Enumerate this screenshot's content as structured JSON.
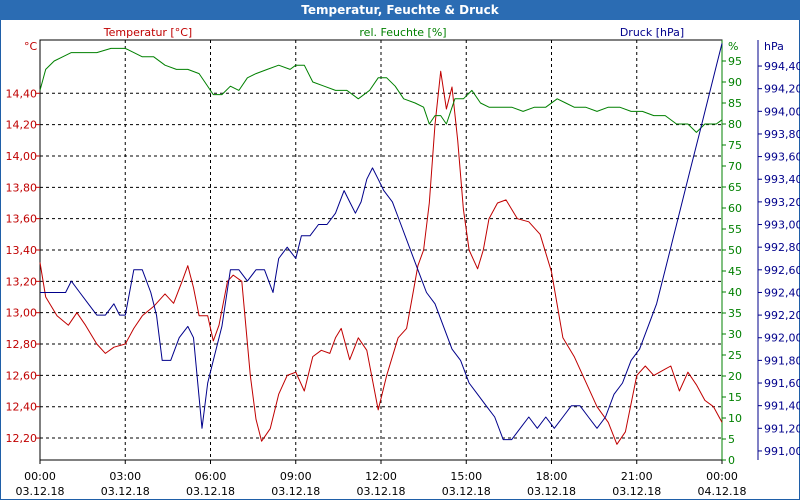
{
  "window": {
    "title": "Temperatur, Feuchte & Druck"
  },
  "colors": {
    "temperature": "#c00000",
    "humidity": "#008000",
    "pressure": "#00008b",
    "grid": "#000000",
    "title_bar": "#2b6cb3"
  },
  "chart_data": {
    "type": "line",
    "title": "Temperatur, Feuchte & Druck",
    "grid": true,
    "x_labels": [
      {
        "time": "00:00",
        "date": "03.12.18"
      },
      {
        "time": "03:00",
        "date": "03.12.18"
      },
      {
        "time": "06:00",
        "date": "03.12.18"
      },
      {
        "time": "09:00",
        "date": "03.12.18"
      },
      {
        "time": "12:00",
        "date": "03.12.18"
      },
      {
        "time": "15:00",
        "date": "03.12.18"
      },
      {
        "time": "18:00",
        "date": "03.12.18"
      },
      {
        "time": "21:00",
        "date": "03.12.18"
      },
      {
        "time": "00:00",
        "date": "04.12.18"
      }
    ],
    "x_range_hours": [
      0,
      24
    ],
    "axes": {
      "temperature": {
        "unit": "°C",
        "label": "Temperatur [°C]",
        "range": [
          12.06,
          14.74
        ],
        "ticks": [
          "12,20",
          "12,40",
          "12,60",
          "12,80",
          "13,00",
          "13,20",
          "13,40",
          "13,60",
          "13,80",
          "14,00",
          "14,20",
          "14,40"
        ],
        "tick_values": [
          12.2,
          12.4,
          12.6,
          12.8,
          13.0,
          13.2,
          13.4,
          13.6,
          13.8,
          14.0,
          14.2,
          14.4
        ]
      },
      "humidity": {
        "unit": "%",
        "label": "rel. Feuchte [%]",
        "range": [
          0,
          100
        ],
        "ticks": [
          "0",
          "5",
          "10",
          "15",
          "20",
          "25",
          "30",
          "35",
          "40",
          "45",
          "50",
          "55",
          "60",
          "65",
          "70",
          "75",
          "80",
          "85",
          "90",
          "95"
        ],
        "tick_values": [
          0,
          5,
          10,
          15,
          20,
          25,
          30,
          35,
          40,
          45,
          50,
          55,
          60,
          65,
          70,
          75,
          80,
          85,
          90,
          95
        ]
      },
      "pressure": {
        "unit": "hPa",
        "label": "Druck [hPa]",
        "range": [
          990.92,
          994.63
        ],
        "ticks": [
          "991,00",
          "991,20",
          "991,40",
          "991,60",
          "991,80",
          "992,00",
          "992,20",
          "992,40",
          "992,60",
          "992,80",
          "993,00",
          "993,20",
          "993,40",
          "993,60",
          "993,80",
          "994,00",
          "994,20",
          "994,40"
        ],
        "tick_values": [
          991.0,
          991.2,
          991.4,
          991.6,
          991.8,
          992.0,
          992.2,
          992.4,
          992.6,
          992.8,
          993.0,
          993.2,
          993.4,
          993.6,
          993.8,
          994.0,
          994.2,
          994.4
        ]
      }
    },
    "series": [
      {
        "name": "Temperatur",
        "axis": "temperature",
        "points": [
          [
            0,
            13.32
          ],
          [
            0.2,
            13.1
          ],
          [
            0.6,
            12.98
          ],
          [
            1,
            12.92
          ],
          [
            1.3,
            13.0
          ],
          [
            1.6,
            12.92
          ],
          [
            2,
            12.8
          ],
          [
            2.3,
            12.74
          ],
          [
            2.6,
            12.78
          ],
          [
            3,
            12.8
          ],
          [
            3.3,
            12.9
          ],
          [
            3.6,
            12.98
          ],
          [
            4,
            13.04
          ],
          [
            4.4,
            13.12
          ],
          [
            4.7,
            13.06
          ],
          [
            5,
            13.2
          ],
          [
            5.2,
            13.3
          ],
          [
            5.4,
            13.16
          ],
          [
            5.6,
            12.98
          ],
          [
            5.9,
            12.98
          ],
          [
            6.1,
            12.82
          ],
          [
            6.3,
            12.92
          ],
          [
            6.6,
            13.2
          ],
          [
            6.8,
            13.24
          ],
          [
            7.1,
            13.2
          ],
          [
            7.4,
            12.6
          ],
          [
            7.6,
            12.32
          ],
          [
            7.8,
            12.18
          ],
          [
            8.1,
            12.26
          ],
          [
            8.4,
            12.48
          ],
          [
            8.7,
            12.6
          ],
          [
            9,
            12.62
          ],
          [
            9.3,
            12.5
          ],
          [
            9.6,
            12.72
          ],
          [
            9.9,
            12.76
          ],
          [
            10.2,
            12.74
          ],
          [
            10.4,
            12.84
          ],
          [
            10.6,
            12.9
          ],
          [
            10.9,
            12.7
          ],
          [
            11.2,
            12.84
          ],
          [
            11.5,
            12.76
          ],
          [
            11.9,
            12.38
          ],
          [
            12.2,
            12.6
          ],
          [
            12.6,
            12.84
          ],
          [
            12.9,
            12.9
          ],
          [
            13.1,
            13.1
          ],
          [
            13.3,
            13.3
          ],
          [
            13.5,
            13.4
          ],
          [
            13.7,
            13.7
          ],
          [
            13.9,
            14.2
          ],
          [
            14.1,
            14.54
          ],
          [
            14.3,
            14.3
          ],
          [
            14.5,
            14.44
          ],
          [
            14.7,
            14.1
          ],
          [
            14.9,
            13.66
          ],
          [
            15.1,
            13.4
          ],
          [
            15.4,
            13.28
          ],
          [
            15.6,
            13.4
          ],
          [
            15.8,
            13.6
          ],
          [
            16.1,
            13.7
          ],
          [
            16.4,
            13.72
          ],
          [
            16.8,
            13.6
          ],
          [
            17.2,
            13.58
          ],
          [
            17.6,
            13.5
          ],
          [
            18,
            13.26
          ],
          [
            18.4,
            12.84
          ],
          [
            18.8,
            12.72
          ],
          [
            19.2,
            12.56
          ],
          [
            19.6,
            12.4
          ],
          [
            20,
            12.3
          ],
          [
            20.3,
            12.16
          ],
          [
            20.6,
            12.24
          ],
          [
            21,
            12.6
          ],
          [
            21.3,
            12.66
          ],
          [
            21.6,
            12.6
          ],
          [
            22,
            12.64
          ],
          [
            22.2,
            12.66
          ],
          [
            22.5,
            12.5
          ],
          [
            22.8,
            12.62
          ],
          [
            23.1,
            12.54
          ],
          [
            23.4,
            12.44
          ],
          [
            23.7,
            12.4
          ],
          [
            24,
            12.3
          ]
        ]
      },
      {
        "name": "rel. Feuchte",
        "axis": "humidity",
        "points": [
          [
            0,
            88
          ],
          [
            0.2,
            93
          ],
          [
            0.5,
            95
          ],
          [
            0.8,
            96
          ],
          [
            1.1,
            97
          ],
          [
            1.5,
            97
          ],
          [
            2,
            97
          ],
          [
            2.5,
            98
          ],
          [
            3,
            98
          ],
          [
            3.3,
            97
          ],
          [
            3.6,
            96
          ],
          [
            4,
            96
          ],
          [
            4.4,
            94
          ],
          [
            4.8,
            93
          ],
          [
            5.2,
            93
          ],
          [
            5.6,
            92
          ],
          [
            5.8,
            90
          ],
          [
            6.1,
            87
          ],
          [
            6.4,
            87
          ],
          [
            6.7,
            89
          ],
          [
            7,
            88
          ],
          [
            7.3,
            91
          ],
          [
            7.6,
            92
          ],
          [
            8,
            93
          ],
          [
            8.4,
            94
          ],
          [
            8.8,
            93
          ],
          [
            9,
            94
          ],
          [
            9.3,
            94
          ],
          [
            9.6,
            90
          ],
          [
            10,
            89
          ],
          [
            10.4,
            88
          ],
          [
            10.8,
            88
          ],
          [
            11.2,
            86
          ],
          [
            11.6,
            88
          ],
          [
            11.9,
            91
          ],
          [
            12.2,
            91
          ],
          [
            12.5,
            89
          ],
          [
            12.8,
            86
          ],
          [
            13.2,
            85
          ],
          [
            13.5,
            84
          ],
          [
            13.7,
            80
          ],
          [
            13.9,
            82
          ],
          [
            14.1,
            82
          ],
          [
            14.3,
            80
          ],
          [
            14.6,
            86
          ],
          [
            14.9,
            86
          ],
          [
            15.2,
            88
          ],
          [
            15.5,
            85
          ],
          [
            15.8,
            84
          ],
          [
            16.2,
            84
          ],
          [
            16.6,
            84
          ],
          [
            17,
            83
          ],
          [
            17.4,
            84
          ],
          [
            17.8,
            84
          ],
          [
            18.2,
            86
          ],
          [
            18.5,
            85
          ],
          [
            18.8,
            84
          ],
          [
            19.2,
            84
          ],
          [
            19.6,
            83
          ],
          [
            20,
            84
          ],
          [
            20.4,
            84
          ],
          [
            20.8,
            83
          ],
          [
            21.2,
            83
          ],
          [
            21.6,
            82
          ],
          [
            22,
            82
          ],
          [
            22.4,
            80
          ],
          [
            22.8,
            80
          ],
          [
            23.1,
            78
          ],
          [
            23.4,
            80
          ],
          [
            23.8,
            80
          ],
          [
            24,
            81
          ]
        ]
      },
      {
        "name": "Druck",
        "axis": "pressure",
        "points": [
          [
            0,
            992.4
          ],
          [
            0.3,
            992.4
          ],
          [
            0.6,
            992.4
          ],
          [
            0.9,
            992.4
          ],
          [
            1.1,
            992.5
          ],
          [
            1.4,
            992.4
          ],
          [
            1.7,
            992.3
          ],
          [
            2,
            992.2
          ],
          [
            2.3,
            992.2
          ],
          [
            2.6,
            992.3
          ],
          [
            2.8,
            992.2
          ],
          [
            3,
            992.2
          ],
          [
            3.3,
            992.6
          ],
          [
            3.6,
            992.6
          ],
          [
            3.9,
            992.4
          ],
          [
            4.1,
            992.2
          ],
          [
            4.3,
            991.8
          ],
          [
            4.6,
            991.8
          ],
          [
            4.9,
            992.0
          ],
          [
            5.2,
            992.1
          ],
          [
            5.4,
            992.0
          ],
          [
            5.7,
            991.2
          ],
          [
            5.9,
            991.6
          ],
          [
            6.1,
            991.8
          ],
          [
            6.4,
            992.1
          ],
          [
            6.7,
            992.6
          ],
          [
            7.0,
            992.6
          ],
          [
            7.3,
            992.5
          ],
          [
            7.6,
            992.6
          ],
          [
            7.9,
            992.6
          ],
          [
            8.2,
            992.4
          ],
          [
            8.4,
            992.7
          ],
          [
            8.7,
            992.8
          ],
          [
            9.0,
            992.7
          ],
          [
            9.2,
            992.9
          ],
          [
            9.5,
            992.9
          ],
          [
            9.8,
            993.0
          ],
          [
            10.1,
            993.0
          ],
          [
            10.4,
            993.1
          ],
          [
            10.7,
            993.3
          ],
          [
            10.9,
            993.2
          ],
          [
            11.1,
            993.1
          ],
          [
            11.3,
            993.2
          ],
          [
            11.5,
            993.4
          ],
          [
            11.7,
            993.5
          ],
          [
            11.9,
            993.4
          ],
          [
            12.1,
            993.3
          ],
          [
            12.4,
            993.2
          ],
          [
            12.7,
            993.0
          ],
          [
            13,
            992.8
          ],
          [
            13.3,
            992.6
          ],
          [
            13.6,
            992.4
          ],
          [
            13.9,
            992.3
          ],
          [
            14.2,
            992.1
          ],
          [
            14.5,
            991.9
          ],
          [
            14.8,
            991.8
          ],
          [
            15.1,
            991.6
          ],
          [
            15.4,
            991.5
          ],
          [
            15.7,
            991.4
          ],
          [
            16,
            991.3
          ],
          [
            16.3,
            991.1
          ],
          [
            16.6,
            991.1
          ],
          [
            16.9,
            991.2
          ],
          [
            17.2,
            991.3
          ],
          [
            17.5,
            991.2
          ],
          [
            17.8,
            991.3
          ],
          [
            18.1,
            991.2
          ],
          [
            18.4,
            991.3
          ],
          [
            18.7,
            991.4
          ],
          [
            19,
            991.4
          ],
          [
            19.3,
            991.3
          ],
          [
            19.6,
            991.2
          ],
          [
            19.9,
            991.3
          ],
          [
            20.2,
            991.5
          ],
          [
            20.5,
            991.6
          ],
          [
            20.8,
            991.8
          ],
          [
            21.1,
            991.9
          ],
          [
            21.4,
            992.1
          ],
          [
            21.7,
            992.3
          ],
          [
            22,
            992.6
          ],
          [
            22.3,
            992.9
          ],
          [
            22.6,
            993.2
          ],
          [
            22.9,
            993.5
          ],
          [
            23.2,
            993.8
          ],
          [
            23.5,
            994.1
          ],
          [
            23.8,
            994.4
          ],
          [
            24,
            994.6
          ]
        ]
      }
    ]
  }
}
